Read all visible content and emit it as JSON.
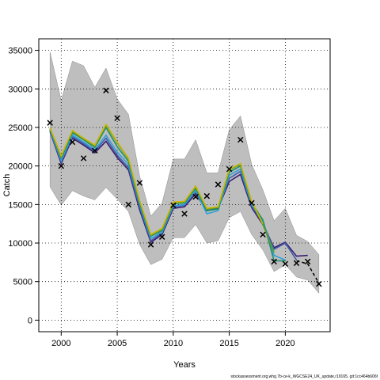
{
  "chart_data": {
    "type": "line",
    "title": "",
    "xlabel": "Years",
    "ylabel": "Catch",
    "xlim": [
      1998,
      2024
    ],
    "ylim": [
      -1500,
      36500
    ],
    "x_ticks": [
      2000,
      2005,
      2010,
      2015,
      2020
    ],
    "y_ticks": [
      0,
      5000,
      10000,
      15000,
      20000,
      25000,
      30000,
      35000
    ],
    "grid": true,
    "grid_style": "dotted",
    "legend": "none",
    "band": {
      "color": "#bebebe",
      "x": [
        1999,
        2000,
        2001,
        2002,
        2003,
        2004,
        2005,
        2006,
        2007,
        2008,
        2009,
        2010,
        2011,
        2012,
        2013,
        2014,
        2015,
        2016,
        2017,
        2018,
        2019,
        2020,
        2021,
        2022,
        2023
      ],
      "upper": [
        34800,
        28500,
        33600,
        33000,
        30200,
        32700,
        28700,
        26700,
        18700,
        13500,
        15200,
        20900,
        20900,
        23400,
        19100,
        19100,
        24700,
        26500,
        20200,
        16900,
        12900,
        14500,
        11000,
        10200,
        8500
      ],
      "lower": [
        17300,
        14900,
        16800,
        16100,
        15600,
        17200,
        15700,
        14100,
        9800,
        7200,
        7900,
        10700,
        10700,
        12400,
        10000,
        10300,
        13300,
        14100,
        11100,
        9100,
        6300,
        7200,
        5600,
        5200,
        3500
      ]
    },
    "series": [
      {
        "color": "#3a1b6e",
        "x": [
          1999,
          2000,
          2001,
          2002,
          2003,
          2004,
          2005,
          2006,
          2007,
          2008,
          2009,
          2010,
          2011,
          2012,
          2013,
          2014,
          2015,
          2016,
          2017,
          2018,
          2019,
          2020,
          2021,
          2022
        ],
        "values": [
          24500,
          20300,
          23600,
          22700,
          21700,
          23200,
          21100,
          19500,
          14300,
          10100,
          11100,
          14500,
          14700,
          16400,
          14200,
          14500,
          18000,
          18900,
          14600,
          12400,
          9400,
          10100,
          8300,
          8400
        ]
      },
      {
        "color": "#3d5cab",
        "x": [
          1999,
          2000,
          2001,
          2002,
          2003,
          2004,
          2005,
          2006,
          2007,
          2008,
          2009,
          2010,
          2011,
          2012,
          2013,
          2014,
          2015,
          2016,
          2017,
          2018,
          2019,
          2020,
          2021
        ],
        "values": [
          24600,
          20500,
          23800,
          22900,
          21900,
          23600,
          21400,
          19800,
          14600,
          10300,
          11300,
          14700,
          14900,
          16700,
          14300,
          14600,
          18400,
          19300,
          14800,
          12600,
          9200,
          10000,
          7800
        ]
      },
      {
        "color": "#2f9fd8",
        "x": [
          1999,
          2000,
          2001,
          2002,
          2003,
          2004,
          2005,
          2006,
          2007,
          2008,
          2009,
          2010,
          2011,
          2012,
          2013,
          2014,
          2015,
          2016,
          2017,
          2018,
          2019,
          2020
        ],
        "values": [
          24700,
          20700,
          24000,
          23100,
          22100,
          24000,
          21800,
          20200,
          15000,
          10600,
          11400,
          14800,
          15000,
          16800,
          13800,
          14200,
          18800,
          19600,
          15000,
          12800,
          8400,
          7800
        ]
      },
      {
        "color": "#1f8f6a",
        "x": [
          1999,
          2000,
          2001,
          2002,
          2003,
          2004,
          2005,
          2006,
          2007,
          2008,
          2009,
          2010,
          2011,
          2012,
          2013,
          2014,
          2015,
          2016,
          2017,
          2018,
          2019,
          2020
        ],
        "values": [
          24800,
          21000,
          24300,
          23400,
          22400,
          25000,
          22500,
          20600,
          15200,
          10900,
          11600,
          15100,
          15200,
          17100,
          14200,
          14400,
          19200,
          20000,
          15200,
          13000,
          7700,
          7700
        ]
      },
      {
        "color": "#5aa02c",
        "x": [
          1999,
          2000,
          2001,
          2002,
          2003,
          2004,
          2005,
          2006,
          2007,
          2008,
          2009,
          2010,
          2011,
          2012,
          2013,
          2014,
          2015,
          2016,
          2017,
          2018,
          2019
        ],
        "values": [
          24900,
          21200,
          24500,
          23500,
          22600,
          25300,
          23000,
          20900,
          15400,
          11000,
          11800,
          15200,
          15300,
          17300,
          14400,
          14600,
          19500,
          20200,
          15300,
          12400,
          8800
        ]
      },
      {
        "color": "#c9b400",
        "x": [
          1999,
          2000,
          2001,
          2002,
          2003,
          2004,
          2005,
          2006,
          2007,
          2008,
          2009,
          2010,
          2011,
          2012,
          2013,
          2014,
          2015,
          2016,
          2017,
          2018
        ],
        "values": [
          24950,
          21300,
          24600,
          23600,
          22700,
          25400,
          23100,
          21000,
          15500,
          11100,
          11900,
          15300,
          15400,
          17400,
          14500,
          14700,
          19600,
          20300,
          15400,
          12500
        ]
      }
    ],
    "projection": {
      "color": "#000000",
      "style": "dashed",
      "x": [
        2021,
        2022,
        2023
      ],
      "values": [
        7700,
        7300,
        4800
      ]
    },
    "observed": {
      "marker": "x",
      "color": "#000000",
      "x": [
        1999,
        2000,
        2001,
        2002,
        2003,
        2004,
        2005,
        2006,
        2007,
        2008,
        2009,
        2010,
        2011,
        2012,
        2013,
        2014,
        2015,
        2016,
        2017,
        2018,
        2019,
        2020,
        2021,
        2022,
        2023
      ],
      "values": [
        25600,
        20000,
        23100,
        21000,
        22000,
        29800,
        26200,
        15000,
        17800,
        9800,
        10800,
        14900,
        13800,
        16000,
        16100,
        17600,
        19600,
        23400,
        15200,
        11100,
        7600,
        7300,
        7400,
        7600,
        4700
      ]
    }
  },
  "caption": "stockassessment.org,whg.7b-ce-k_WGCSE24_UK_update,r19165, git:1cc464b606f"
}
